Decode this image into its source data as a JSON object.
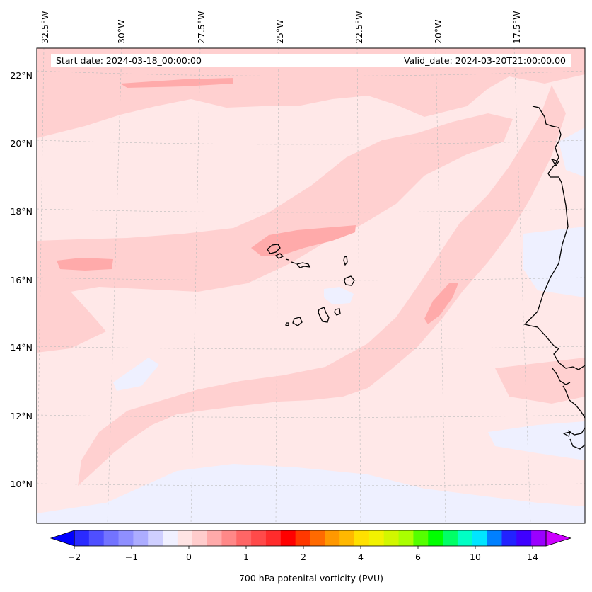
{
  "map": {
    "start_date": "Start date: 2024-03-18_00:00:00",
    "valid_date": "Valid_date: 2024-03-20T21:00:00.00",
    "lon_labels": [
      "32.5°W",
      "30°W",
      "27.5°W",
      "25°W",
      "22.5°W",
      "20°W",
      "17.5°W"
    ],
    "lat_labels": [
      "22°N",
      "20°N",
      "18°N",
      "16°N",
      "14°N",
      "12°N",
      "10°N"
    ],
    "colors": {
      "ocean_background": "#ffe8e8",
      "band_light": "#ffd0d0",
      "band_medium": "#ffaaaa",
      "negative_light": "#eef0ff",
      "coastline": "#000000"
    }
  },
  "colorbar": {
    "label": "700 hPa potenital vorticity (PVU)",
    "tick_labels": [
      "−2",
      "−1",
      "0",
      "1",
      "2",
      "4",
      "6",
      "10",
      "14"
    ],
    "colors": [
      "#0000ff",
      "#2a2aff",
      "#4f4fff",
      "#7373ff",
      "#8f8fff",
      "#acacff",
      "#cfcfff",
      "#f0f0ff",
      "#ffe4e4",
      "#ffcccc",
      "#ffaaaa",
      "#ff8888",
      "#ff6666",
      "#ff4a4a",
      "#ff2c2c",
      "#ff0000",
      "#ff3800",
      "#ff6a00",
      "#ff9800",
      "#ffb800",
      "#ffe000",
      "#f2f200",
      "#d2f700",
      "#aaff00",
      "#55ff00",
      "#00ff00",
      "#00ff66",
      "#00ffc4",
      "#00e5ff",
      "#0080ff",
      "#2222ff",
      "#3f00ff",
      "#9a00ff",
      "#cc00ff"
    ]
  }
}
